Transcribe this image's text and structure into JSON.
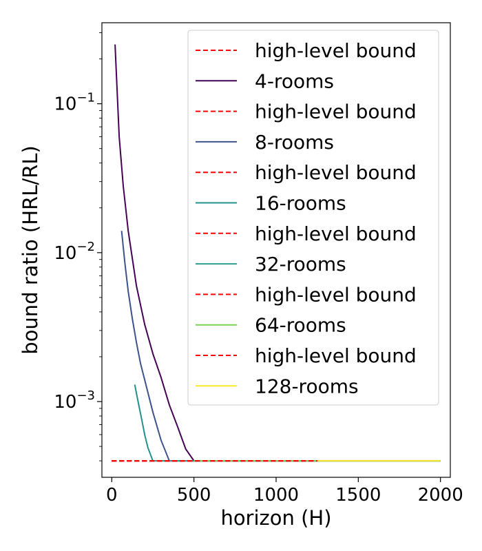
{
  "chart_data": {
    "type": "line",
    "title": "",
    "xlabel": "horizon (H)",
    "ylabel": "bound ratio (HRL/RL)",
    "xlim": [
      -60,
      2060
    ],
    "ylim": [
      0.00031,
      0.35
    ],
    "yscale": "log",
    "grid": false,
    "legend_position": "top-right",
    "x_ticks": [
      0,
      500,
      1000,
      1500,
      2000
    ],
    "x_tick_labels": [
      "0",
      "500",
      "1000",
      "1500",
      "2000"
    ],
    "y_ticks": [
      0.001,
      0.01,
      0.1
    ],
    "y_tick_bases": [
      "10",
      "10",
      "10"
    ],
    "y_tick_exponents": [
      "−3",
      "−2",
      "−1"
    ],
    "series": [
      {
        "name": "high-level bound",
        "style": "dashed",
        "color": "#ff0000",
        "x": [
          0,
          500
        ],
        "y": [
          0.0004,
          0.0004
        ]
      },
      {
        "name": "4-rooms",
        "style": "solid",
        "color": "#440154",
        "x": [
          20,
          45,
          70,
          100,
          150,
          200,
          250,
          300,
          350,
          400,
          450,
          500,
          1000,
          1500,
          2000
        ],
        "y": [
          0.25,
          0.06,
          0.028,
          0.014,
          0.006,
          0.0033,
          0.0021,
          0.00145,
          0.00095,
          0.00068,
          0.00048,
          0.0004,
          0.0004,
          0.0004,
          0.0004
        ]
      },
      {
        "name": "high-level bound",
        "style": "dashed",
        "color": "#ff0000",
        "x": [
          0,
          500
        ],
        "y": [
          0.0004,
          0.0004
        ]
      },
      {
        "name": "8-rooms",
        "style": "solid",
        "color": "#3b528b",
        "x": [
          60,
          80,
          100,
          125,
          150,
          175,
          200,
          250,
          300,
          350,
          1000,
          1500,
          2000
        ],
        "y": [
          0.014,
          0.0085,
          0.0055,
          0.0036,
          0.0025,
          0.0018,
          0.0014,
          0.00085,
          0.00055,
          0.0004,
          0.0004,
          0.0004,
          0.0004
        ]
      },
      {
        "name": "high-level bound",
        "style": "dashed",
        "color": "#ff0000",
        "x": [
          0,
          500
        ],
        "y": [
          0.0004,
          0.0004
        ]
      },
      {
        "name": "16-rooms",
        "style": "solid",
        "color": "#21918c",
        "x": [
          140,
          160,
          180,
          200,
          220,
          250,
          1000,
          1500,
          2000
        ],
        "y": [
          0.0013,
          0.001,
          0.00078,
          0.0006,
          0.00049,
          0.0004,
          0.0004,
          0.0004,
          0.0004
        ]
      },
      {
        "name": "high-level bound",
        "style": "dashed",
        "color": "#ff0000",
        "x": [
          0,
          1250
        ],
        "y": [
          0.0004,
          0.0004
        ]
      },
      {
        "name": "32-rooms",
        "style": "solid",
        "color": "#2a9d8f",
        "x": [
          250,
          2000
        ],
        "y": [
          0.0004,
          0.0004
        ]
      },
      {
        "name": "high-level bound",
        "style": "dashed",
        "color": "#ff0000",
        "x": [
          0,
          1250
        ],
        "y": [
          0.0004,
          0.0004
        ]
      },
      {
        "name": "64-rooms",
        "style": "solid",
        "color": "#7ad151",
        "x": [
          500,
          2000
        ],
        "y": [
          0.0004,
          0.0004
        ]
      },
      {
        "name": "high-level bound",
        "style": "dashed",
        "color": "#ff0000",
        "x": [
          0,
          1250
        ],
        "y": [
          0.0004,
          0.0004
        ]
      },
      {
        "name": "128-rooms",
        "style": "solid",
        "color": "#fde725",
        "x": [
          1250,
          2000
        ],
        "y": [
          0.0004,
          0.0004
        ]
      }
    ]
  }
}
